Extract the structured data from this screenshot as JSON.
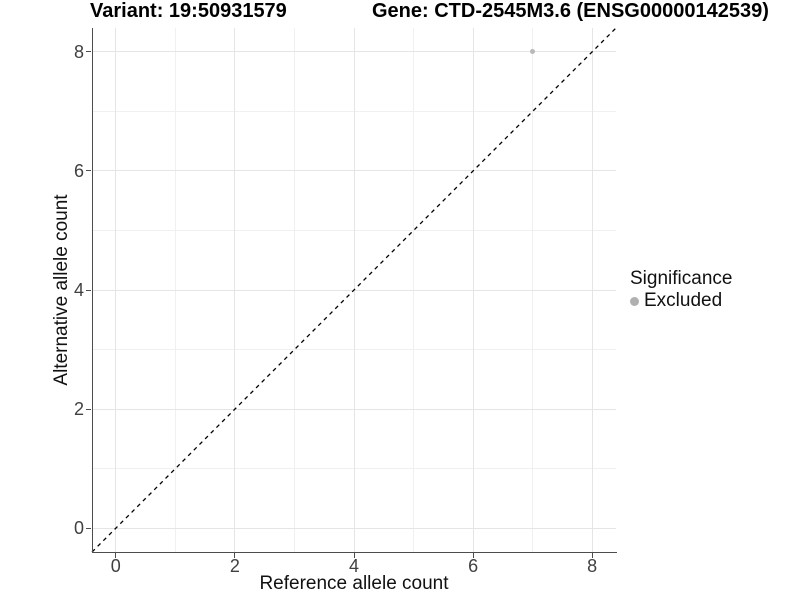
{
  "chart_data": {
    "type": "scatter",
    "title_left": "Variant: 19:50931579",
    "title_right": "Gene: CTD-2545M3.6 (ENSG00000142539)",
    "xlabel": "Reference allele count",
    "ylabel": "Alternative allele count",
    "xlim": [
      -0.4,
      8.4
    ],
    "ylim": [
      -0.4,
      8.4
    ],
    "x_ticks": [
      0,
      2,
      4,
      6,
      8
    ],
    "y_ticks": [
      0,
      2,
      4,
      6,
      8
    ],
    "x_minor_ticks": [
      1,
      3,
      5,
      7
    ],
    "y_minor_ticks": [
      1,
      3,
      5,
      7
    ],
    "grid": true,
    "legend_position": "right",
    "identity_line": {
      "type": "y=x",
      "style": "dashed",
      "color": "#000000"
    },
    "series": [
      {
        "name": "Excluded",
        "color": "#b9b9b9",
        "points": [
          {
            "x": 7,
            "y": 8
          }
        ]
      }
    ],
    "legend": {
      "title": "Significance",
      "items": [
        {
          "label": "Excluded",
          "color": "#b0b0b0"
        }
      ]
    }
  },
  "colors": {
    "background": "#ffffff",
    "axis_line": "#4d4d4d",
    "tick_label": "#404040",
    "grid_major": "#e5e5e5",
    "grid_minor": "#f0f0f0",
    "title": "#000000"
  }
}
